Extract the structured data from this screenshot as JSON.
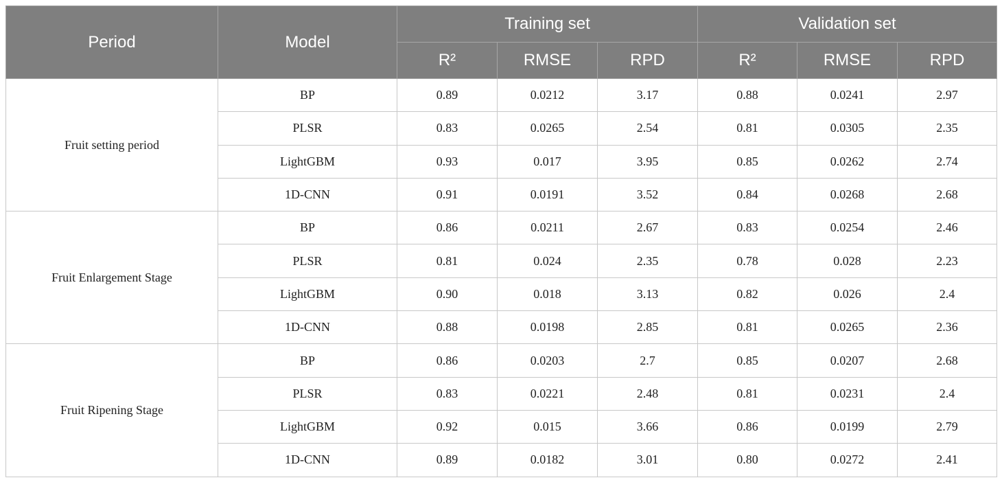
{
  "table": {
    "header": {
      "period": "Period",
      "model": "Model",
      "groups": [
        "Training set",
        "Validation set"
      ],
      "metrics": [
        "R²",
        "RMSE",
        "RPD",
        "R²",
        "RMSE",
        "RPD"
      ]
    },
    "sections": [
      {
        "period": "Fruit setting period",
        "rows": [
          {
            "model": "BP",
            "values": [
              "0.89",
              "0.0212",
              "3.17",
              "0.88",
              "0.0241",
              "2.97"
            ]
          },
          {
            "model": "PLSR",
            "values": [
              "0.83",
              "0.0265",
              "2.54",
              "0.81",
              "0.0305",
              "2.35"
            ]
          },
          {
            "model": "LightGBM",
            "values": [
              "0.93",
              "0.017",
              "3.95",
              "0.85",
              "0.0262",
              "2.74"
            ]
          },
          {
            "model": "1D-CNN",
            "values": [
              "0.91",
              "0.0191",
              "3.52",
              "0.84",
              "0.0268",
              "2.68"
            ]
          }
        ]
      },
      {
        "period": "Fruit Enlargement Stage",
        "rows": [
          {
            "model": "BP",
            "values": [
              "0.86",
              "0.0211",
              "2.67",
              "0.83",
              "0.0254",
              "2.46"
            ]
          },
          {
            "model": "PLSR",
            "values": [
              "0.81",
              "0.024",
              "2.35",
              "0.78",
              "0.028",
              "2.23"
            ]
          },
          {
            "model": "LightGBM",
            "values": [
              "0.90",
              "0.018",
              "3.13",
              "0.82",
              "0.026",
              "2.4"
            ]
          },
          {
            "model": "1D-CNN",
            "values": [
              "0.88",
              "0.0198",
              "2.85",
              "0.81",
              "0.0265",
              "2.36"
            ]
          }
        ]
      },
      {
        "period": "Fruit Ripening Stage",
        "rows": [
          {
            "model": "BP",
            "values": [
              "0.86",
              "0.0203",
              "2.7",
              "0.85",
              "0.0207",
              "2.68"
            ]
          },
          {
            "model": "PLSR",
            "values": [
              "0.83",
              "0.0221",
              "2.48",
              "0.81",
              "0.0231",
              "2.4"
            ]
          },
          {
            "model": "LightGBM",
            "values": [
              "0.92",
              "0.015",
              "3.66",
              "0.86",
              "0.0199",
              "2.79"
            ]
          },
          {
            "model": "1D-CNN",
            "values": [
              "0.89",
              "0.0182",
              "3.01",
              "0.80",
              "0.0272",
              "2.41"
            ]
          }
        ]
      }
    ]
  }
}
